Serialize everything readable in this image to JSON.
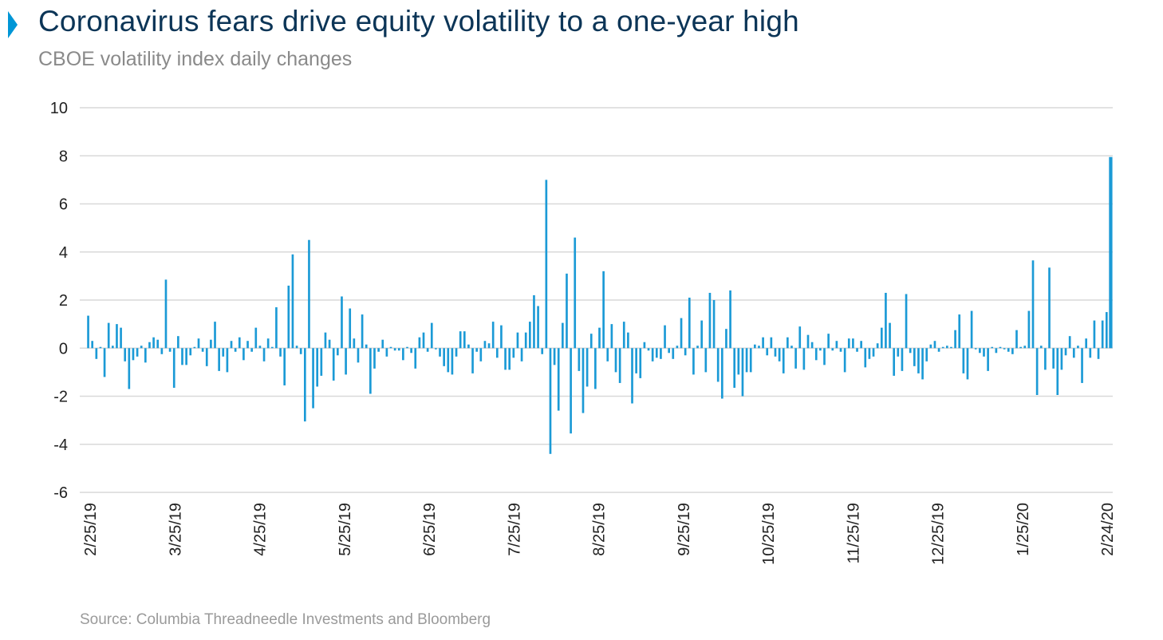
{
  "header": {
    "title": "Coronavirus fears drive equity volatility to a one-year high",
    "subtitle": "CBOE volatility index daily changes"
  },
  "footer": {
    "source": "Source: Columbia Threadneedle Investments and Bloomberg"
  },
  "colors": {
    "bar": "#1b9ad6",
    "title": "#0c3557",
    "accent": "#0096d6",
    "grid": "#d9d9d9"
  },
  "chart_data": {
    "type": "bar",
    "title": "Coronavirus fears drive equity volatility to a one-year high",
    "subtitle": "CBOE volatility index daily changes",
    "xlabel": "",
    "ylabel": "",
    "ylim": [
      -6,
      10
    ],
    "yticks": [
      10,
      8,
      6,
      4,
      2,
      0,
      -2,
      -4,
      -6
    ],
    "xticks": [
      "2/25/19",
      "3/25/19",
      "4/25/19",
      "5/25/19",
      "6/25/19",
      "7/25/19",
      "8/25/19",
      "9/25/19",
      "10/25/19",
      "11/25/19",
      "12/25/19",
      "1/25/20",
      "2/24/20"
    ],
    "grid": true,
    "legend": "none",
    "values": [
      1.35,
      0.3,
      -0.45,
      0.05,
      -1.2,
      1.05,
      0.1,
      1.0,
      0.85,
      -0.55,
      -1.7,
      -0.5,
      -0.35,
      0.1,
      -0.6,
      0.25,
      0.45,
      0.35,
      -0.25,
      2.85,
      -0.15,
      -1.65,
      0.5,
      -0.7,
      -0.7,
      -0.3,
      0.05,
      0.4,
      -0.15,
      -0.75,
      0.35,
      1.1,
      -0.95,
      -0.35,
      -1.0,
      0.3,
      -0.15,
      0.45,
      -0.5,
      0.3,
      -0.15,
      0.85,
      0.1,
      -0.55,
      0.4,
      0.05,
      1.7,
      -0.35,
      -1.55,
      2.6,
      3.9,
      0.1,
      -0.25,
      -3.05,
      4.5,
      -2.5,
      -1.6,
      -1.15,
      0.65,
      0.35,
      -1.35,
      -0.3,
      2.15,
      -1.1,
      1.65,
      0.4,
      -0.6,
      1.4,
      0.15,
      -1.9,
      -0.85,
      -0.15,
      0.35,
      -0.35,
      0.05,
      -0.1,
      -0.1,
      -0.5,
      0.05,
      -0.2,
      -0.85,
      0.45,
      0.65,
      -0.15,
      1.05,
      -0.05,
      -0.35,
      -0.75,
      -1.0,
      -1.1,
      -0.35,
      0.7,
      0.7,
      0.15,
      -1.05,
      -0.15,
      -0.55,
      0.3,
      0.2,
      1.1,
      -0.4,
      0.95,
      -0.9,
      -0.9,
      -0.4,
      0.65,
      -0.55,
      0.65,
      1.1,
      2.2,
      1.75,
      -0.25,
      7.0,
      -4.4,
      -0.7,
      -2.6,
      1.05,
      3.1,
      -3.55,
      4.6,
      -0.95,
      -2.7,
      -1.6,
      0.6,
      -1.7,
      0.85,
      3.2,
      -0.55,
      1.0,
      -1.0,
      -1.45,
      1.1,
      0.65,
      -2.3,
      -1.05,
      -1.25,
      0.25,
      -0.1,
      -0.55,
      -0.4,
      -0.45,
      0.95,
      -0.2,
      -0.45,
      0.1,
      1.25,
      -0.3,
      2.1,
      -1.1,
      0.1,
      1.15,
      -1.0,
      2.3,
      2.0,
      -1.4,
      -2.1,
      0.8,
      2.4,
      -1.65,
      -1.1,
      -2.0,
      -1.0,
      -1.0,
      0.15,
      0.1,
      0.45,
      -0.3,
      0.45,
      -0.35,
      -0.55,
      -1.05,
      0.45,
      0.1,
      -0.85,
      0.9,
      -0.9,
      0.55,
      0.25,
      -0.5,
      -0.1,
      -0.7,
      0.6,
      -0.1,
      0.3,
      -0.15,
      -1.0,
      0.4,
      0.4,
      -0.15,
      0.3,
      -0.8,
      -0.45,
      -0.35,
      0.2,
      0.85,
      2.3,
      1.05,
      -1.15,
      -0.35,
      -0.95,
      2.25,
      -0.2,
      -0.75,
      -1.05,
      -1.3,
      -0.55,
      0.15,
      0.3,
      -0.15,
      0.05,
      0.1,
      0.05,
      0.75,
      1.4,
      -1.05,
      -1.3,
      1.55,
      -0.05,
      -0.2,
      -0.35,
      -0.95,
      0.05,
      -0.2,
      0.05,
      -0.05,
      -0.15,
      -0.25,
      0.75,
      0.05,
      0.1,
      1.55,
      3.65,
      -1.95,
      0.1,
      -0.9,
      3.35,
      -0.85,
      -1.95,
      -0.9,
      -0.3,
      0.5,
      -0.4,
      0.1,
      -1.45,
      0.4,
      -0.4,
      1.15,
      -0.45,
      1.15,
      1.5,
      7.95
    ]
  }
}
